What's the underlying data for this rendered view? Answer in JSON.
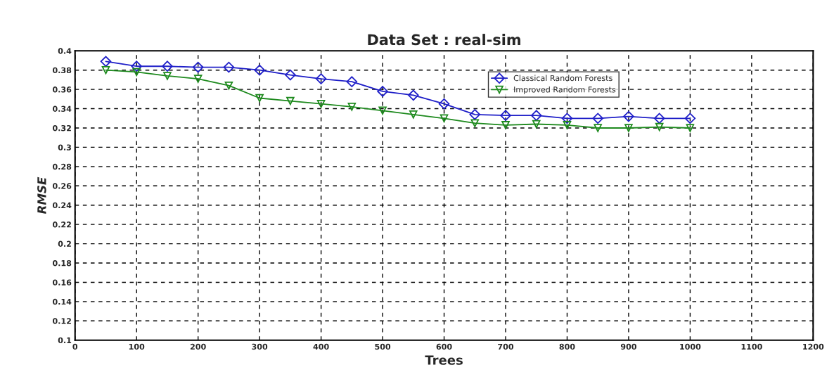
{
  "chart_data": {
    "type": "line",
    "title": "Data Set : real-sim",
    "xlabel": "Trees",
    "ylabel": "RMSE",
    "x": [
      50,
      100,
      150,
      200,
      250,
      300,
      350,
      400,
      450,
      500,
      550,
      600,
      650,
      700,
      750,
      800,
      850,
      900,
      950,
      1000
    ],
    "series": [
      {
        "name": "Classical Random Forests",
        "color": "#1f1fc8",
        "marker": "diamond",
        "values": [
          0.389,
          0.384,
          0.384,
          0.383,
          0.383,
          0.38,
          0.375,
          0.371,
          0.368,
          0.358,
          0.354,
          0.345,
          0.334,
          0.333,
          0.333,
          0.33,
          0.33,
          0.332,
          0.33,
          0.33
        ]
      },
      {
        "name": "Improved Random Forests",
        "color": "#1e8a1e",
        "marker": "triangle",
        "values": [
          0.38,
          0.378,
          0.374,
          0.371,
          0.364,
          0.351,
          0.348,
          0.345,
          0.342,
          0.338,
          0.334,
          0.33,
          0.325,
          0.323,
          0.324,
          0.323,
          0.32,
          0.32,
          0.321,
          0.32
        ]
      }
    ],
    "xlim": [
      0,
      1200
    ],
    "xticks": [
      0,
      100,
      200,
      300,
      400,
      500,
      600,
      700,
      800,
      900,
      1000,
      1100,
      1200
    ],
    "ylim": [
      0.1,
      0.4
    ],
    "yticks": [
      0.1,
      0.12,
      0.14,
      0.16,
      0.18,
      0.2,
      0.22,
      0.24,
      0.26,
      0.28,
      0.3,
      0.32,
      0.34,
      0.36,
      0.38,
      0.4
    ],
    "grid": true,
    "legend": "top right",
    "line_style": "solid"
  }
}
